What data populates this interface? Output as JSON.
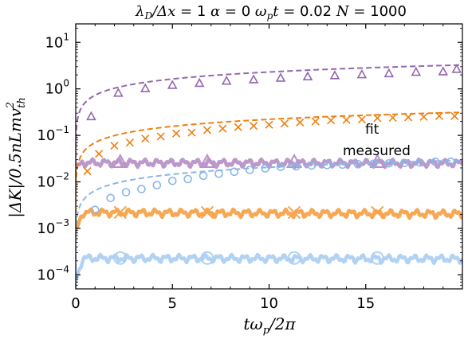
{
  "chart_data": {
    "type": "line",
    "title": "λ_D/Δx = 1 α = 0 ω_p t = 0.02 N = 1000",
    "title_parts": {
      "p1": "λ",
      "p1_sub": "D",
      "p2": "/Δx = ",
      "p3": "1",
      "p4": " α",
      "p5": " = ",
      "p6": "0",
      "p7": " ω",
      "p7_sub": "p",
      "p8": "t",
      "p9": " = ",
      "p10": "0.02",
      "p11": " N",
      "p12": " = ",
      "p13": "1000"
    },
    "xlabel": "tω_p/2π",
    "xlabel_parts": {
      "a": "tω",
      "sub": "p",
      "b": "/2π"
    },
    "ylabel": "|ΔK|/0.5nLmv_th^2",
    "ylabel_parts": {
      "a": "|ΔK|/0.5nLmv",
      "sub": "th",
      "sup": "2"
    },
    "xlim": [
      0,
      20
    ],
    "ylim": [
      5e-05,
      25
    ],
    "yscale": "log",
    "xticks": [
      0,
      5,
      10,
      15
    ],
    "yticks": [
      {
        "value": 10,
        "label": "10",
        "exp": "1"
      },
      {
        "value": 1,
        "label": "10",
        "exp": "0"
      },
      {
        "value": 0.1,
        "label": "10",
        "exp": "−1"
      },
      {
        "value": 0.01,
        "label": "10",
        "exp": "−2"
      },
      {
        "value": 0.001,
        "label": "10",
        "exp": "−3"
      },
      {
        "value": 0.0001,
        "label": "10",
        "exp": "−4"
      }
    ],
    "annotations": [
      {
        "text": "fit",
        "color": "#f28e1c"
      },
      {
        "text": "measured",
        "color": "#f4b060"
      }
    ],
    "series": [
      {
        "kind": "fit",
        "color": "#9467ad",
        "marker": "triangle",
        "A": 0.73,
        "p": 0.5,
        "points": [
          [
            0.8,
            0.25
          ],
          [
            2.2,
            0.8
          ],
          [
            3.6,
            1.0
          ],
          [
            5.0,
            1.18
          ],
          [
            6.4,
            1.3
          ],
          [
            7.8,
            1.45
          ],
          [
            9.2,
            1.55
          ],
          [
            10.6,
            1.68
          ],
          [
            12.0,
            1.8
          ],
          [
            13.4,
            1.9
          ],
          [
            14.8,
            2.0
          ],
          [
            16.2,
            2.1
          ],
          [
            17.6,
            2.25
          ],
          [
            19.0,
            2.3
          ],
          [
            19.7,
            2.6
          ]
        ]
      },
      {
        "kind": "fit",
        "color": "#f07f10",
        "marker": "x",
        "A": 0.07,
        "p": 0.5,
        "points": [
          [
            0.6,
            0.017
          ],
          [
            1.2,
            0.04
          ],
          [
            2.0,
            0.06
          ],
          [
            2.8,
            0.07
          ],
          [
            3.6,
            0.085
          ],
          [
            4.4,
            0.095
          ],
          [
            5.2,
            0.11
          ],
          [
            6.0,
            0.115
          ],
          [
            6.8,
            0.13
          ],
          [
            7.6,
            0.14
          ],
          [
            8.4,
            0.15
          ],
          [
            9.2,
            0.16
          ],
          [
            10.0,
            0.17
          ],
          [
            10.8,
            0.18
          ],
          [
            11.6,
            0.19
          ],
          [
            12.4,
            0.2
          ],
          [
            13.2,
            0.21
          ],
          [
            14.0,
            0.215
          ],
          [
            14.8,
            0.22
          ],
          [
            15.6,
            0.235
          ],
          [
            16.4,
            0.24
          ],
          [
            17.2,
            0.245
          ],
          [
            18.0,
            0.25
          ],
          [
            18.8,
            0.26
          ],
          [
            19.6,
            0.26
          ]
        ]
      },
      {
        "kind": "fit",
        "color": "#8ab6e6",
        "marker": "circle",
        "A": 0.0065,
        "p": 0.5,
        "points": [
          [
            1.0,
            0.0025
          ],
          [
            1.8,
            0.0045
          ],
          [
            2.6,
            0.006
          ],
          [
            3.4,
            0.007
          ],
          [
            4.2,
            0.0085
          ],
          [
            5.0,
            0.0105
          ],
          [
            5.8,
            0.0115
          ],
          [
            6.6,
            0.0135
          ],
          [
            7.4,
            0.015
          ],
          [
            8.2,
            0.0165
          ],
          [
            9.0,
            0.018
          ],
          [
            9.8,
            0.0195
          ],
          [
            10.6,
            0.021
          ],
          [
            11.4,
            0.0215
          ],
          [
            12.2,
            0.0225
          ],
          [
            13.0,
            0.023
          ],
          [
            13.8,
            0.0235
          ],
          [
            14.6,
            0.024
          ],
          [
            15.4,
            0.0245
          ],
          [
            16.2,
            0.025
          ],
          [
            17.0,
            0.0255
          ],
          [
            17.8,
            0.026
          ],
          [
            18.6,
            0.027
          ],
          [
            19.4,
            0.027
          ]
        ]
      },
      {
        "kind": "measured",
        "color": "#b892c8",
        "marker": "triangle",
        "level": 0.026,
        "start": 0.019,
        "markers": [
          2.3,
          6.8,
          11.3,
          15.6
        ]
      },
      {
        "kind": "measured",
        "color": "#f7a34b",
        "marker": "x",
        "level": 0.0022,
        "start": 0.0008,
        "markers": [
          2.3,
          6.8,
          11.3,
          15.6
        ]
      },
      {
        "kind": "measured",
        "color": "#aed0f2",
        "marker": "circle",
        "level": 0.00023,
        "start": 7e-05,
        "markers": [
          2.3,
          6.8,
          11.3,
          15.6
        ]
      }
    ]
  }
}
